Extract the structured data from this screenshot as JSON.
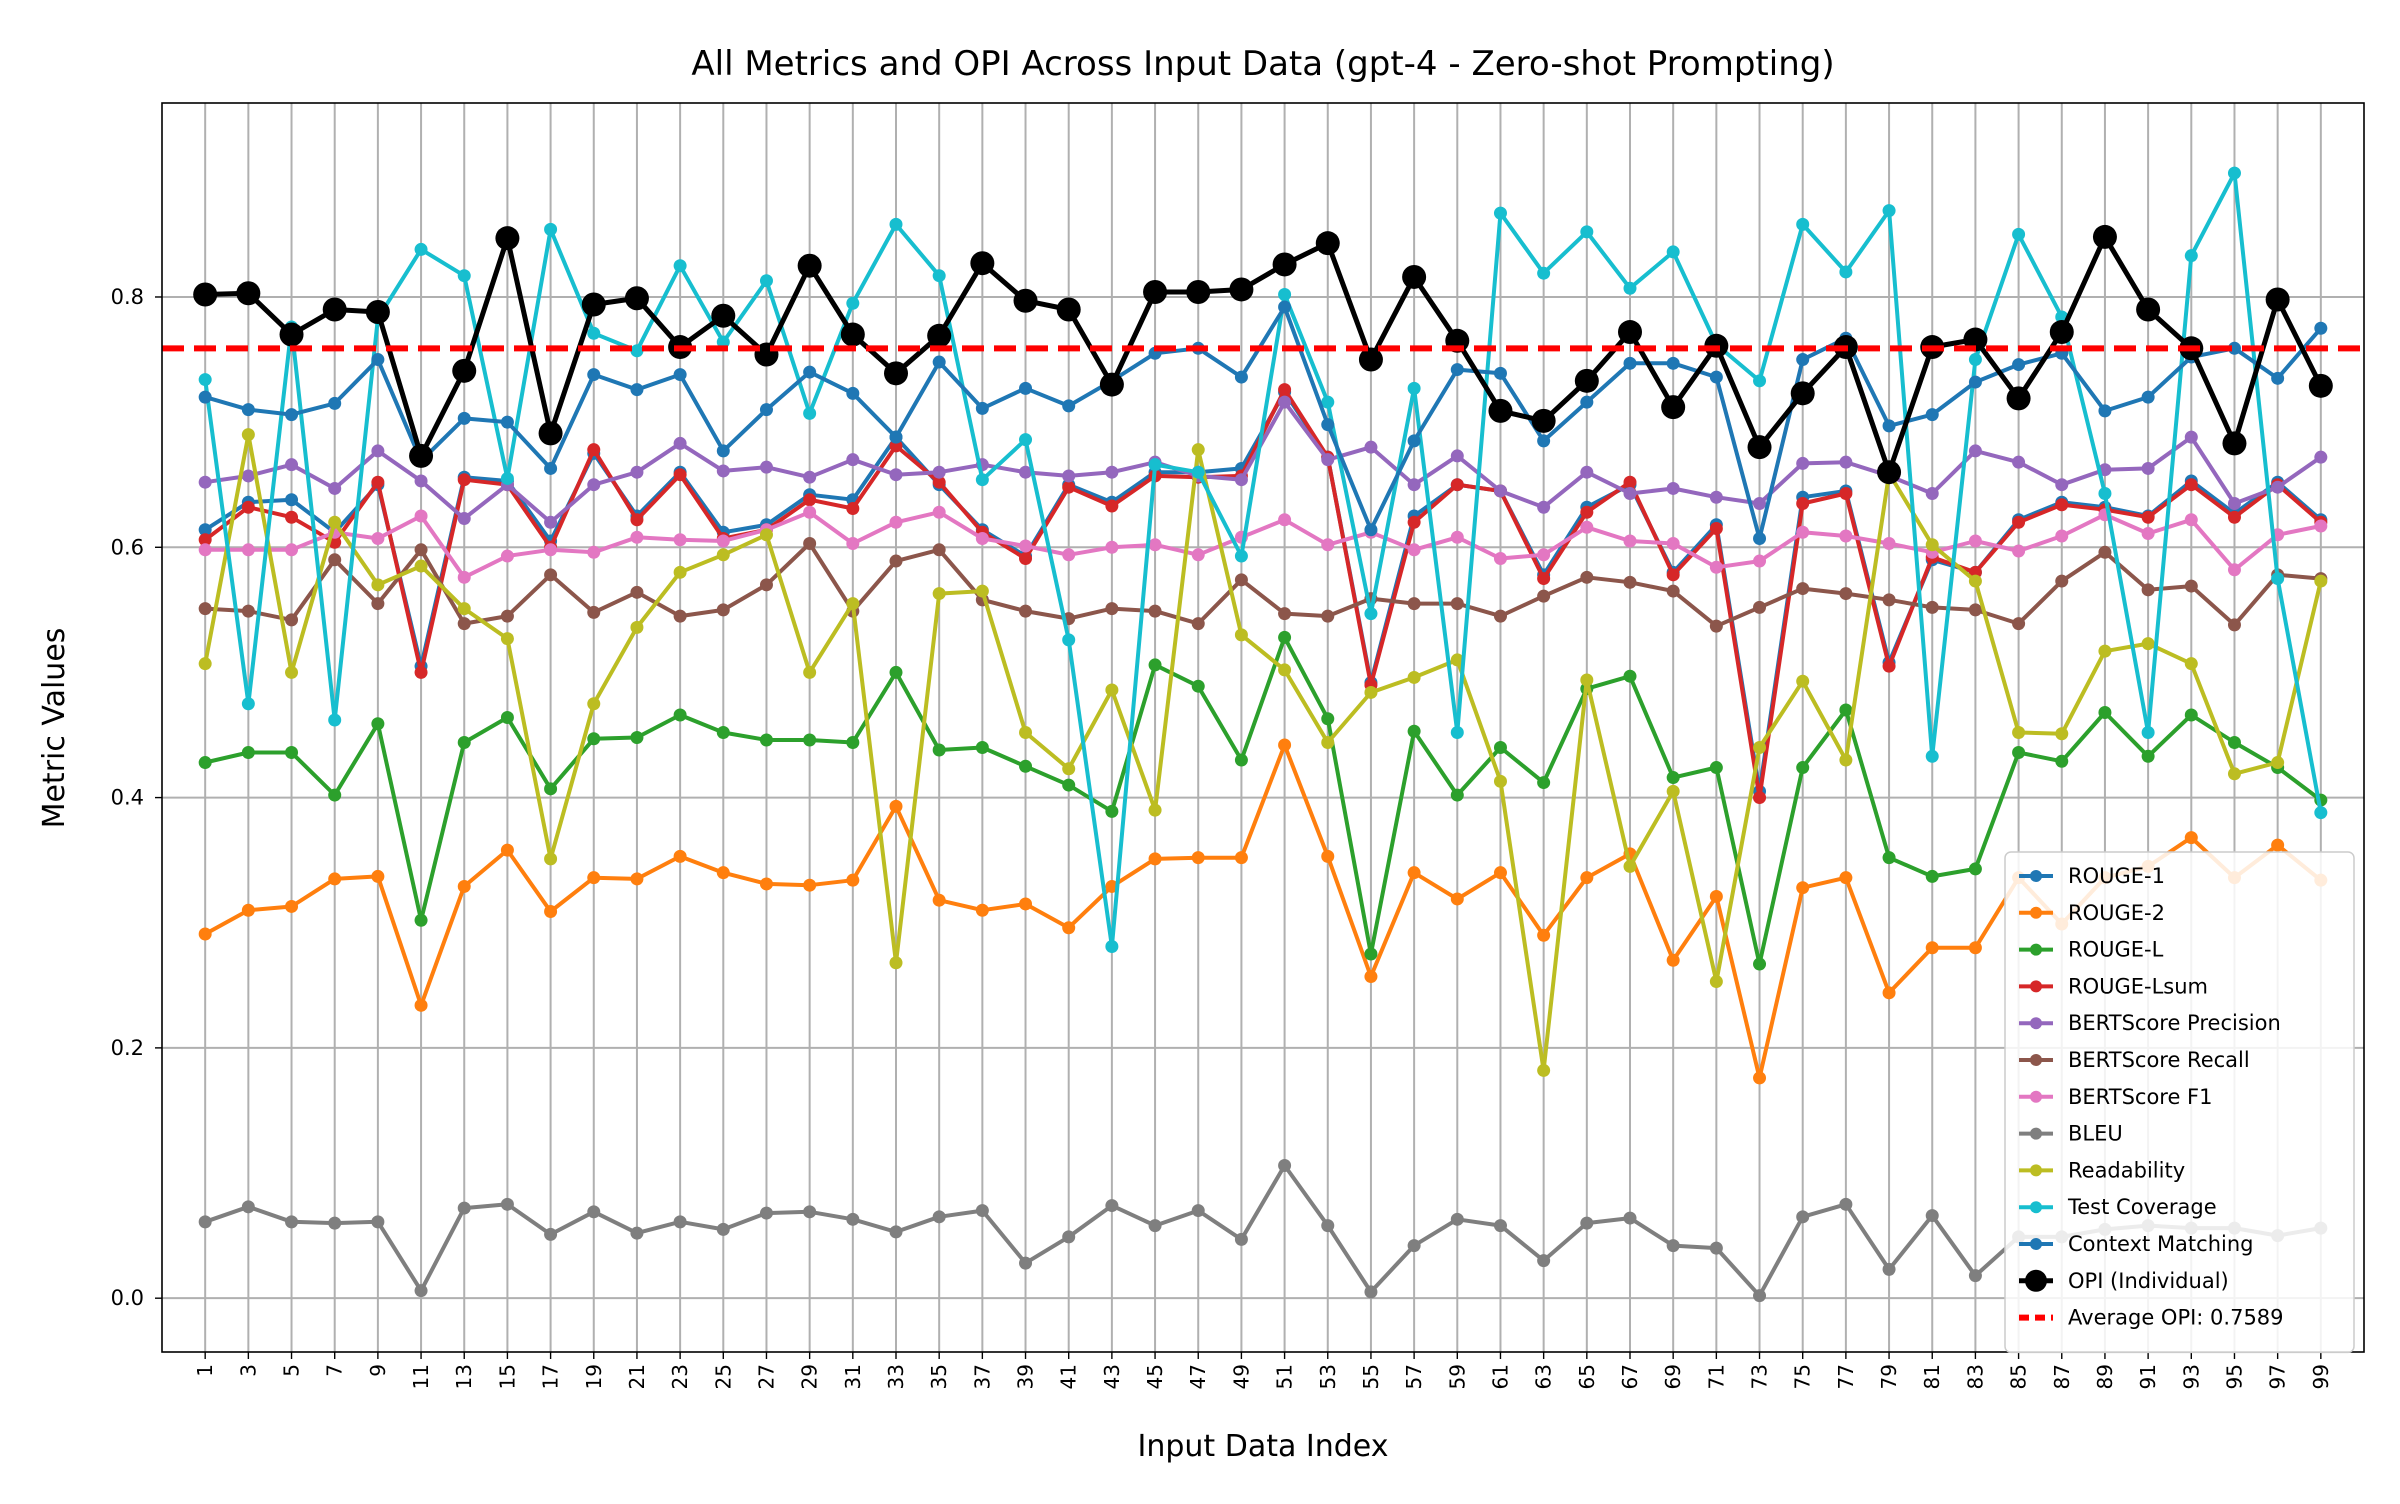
{
  "chart_data": {
    "type": "line",
    "title": "All Metrics and OPI Across Input Data (gpt-4 - Zero-shot Prompting)",
    "xlabel": "Input Data Index",
    "ylabel": "Metric Values",
    "x": [
      1,
      3,
      5,
      7,
      9,
      11,
      13,
      15,
      17,
      19,
      21,
      23,
      25,
      27,
      29,
      31,
      33,
      35,
      37,
      39,
      41,
      43,
      45,
      47,
      49,
      51,
      53,
      55,
      57,
      59,
      61,
      63,
      65,
      67,
      69,
      71,
      73,
      75,
      77,
      79,
      81,
      83,
      85,
      87,
      89,
      91,
      93,
      95,
      97,
      99
    ],
    "xlim": [
      -1.0,
      101.0
    ],
    "ylim": [
      -0.043,
      0.955
    ],
    "yticks": [
      0.0,
      0.2,
      0.4,
      0.6,
      0.8
    ],
    "ytick_labels": [
      "0.0",
      "0.2",
      "0.4",
      "0.6",
      "0.8"
    ],
    "grid": true,
    "legend_position": "lower-right",
    "series": [
      {
        "name": "ROUGE-1",
        "color": "#1f77b4",
        "values": [
          0.614,
          0.636,
          0.638,
          0.612,
          0.65,
          0.505,
          0.656,
          0.653,
          0.605,
          0.675,
          0.625,
          0.66,
          0.612,
          0.618,
          0.642,
          0.638,
          0.688,
          0.65,
          0.614,
          0.593,
          0.65,
          0.636,
          0.66,
          0.66,
          0.663,
          0.724,
          0.672,
          0.492,
          0.625,
          0.65,
          0.645,
          0.578,
          0.632,
          0.65,
          0.58,
          0.618,
          0.405,
          0.64,
          0.645,
          0.508,
          0.59,
          0.58,
          0.622,
          0.636,
          0.632,
          0.625,
          0.653,
          0.627,
          0.652,
          0.622
        ]
      },
      {
        "name": "ROUGE-2",
        "color": "#ff7f0e",
        "values": [
          0.291,
          0.31,
          0.313,
          0.335,
          0.337,
          0.234,
          0.329,
          0.358,
          0.309,
          0.336,
          0.335,
          0.353,
          0.34,
          0.331,
          0.33,
          0.334,
          0.393,
          0.318,
          0.31,
          0.315,
          0.296,
          0.329,
          0.351,
          0.352,
          0.352,
          0.442,
          0.353,
          0.257,
          0.34,
          0.319,
          0.34,
          0.29,
          0.336,
          0.355,
          0.27,
          0.321,
          0.176,
          0.328,
          0.336,
          0.244,
          0.28,
          0.28,
          0.336,
          0.299,
          0.336,
          0.345,
          0.368,
          0.336,
          0.362,
          0.334
        ]
      },
      {
        "name": "ROUGE-L",
        "color": "#2ca02c",
        "values": [
          0.428,
          0.436,
          0.436,
          0.402,
          0.459,
          0.302,
          0.444,
          0.464,
          0.407,
          0.447,
          0.448,
          0.466,
          0.452,
          0.446,
          0.446,
          0.444,
          0.5,
          0.438,
          0.44,
          0.425,
          0.41,
          0.389,
          0.506,
          0.489,
          0.43,
          0.528,
          0.463,
          0.275,
          0.453,
          0.402,
          0.44,
          0.412,
          0.487,
          0.497,
          0.416,
          0.424,
          0.267,
          0.424,
          0.47,
          0.352,
          0.337,
          0.343,
          0.436,
          0.429,
          0.468,
          0.433,
          0.466,
          0.444,
          0.424,
          0.398
        ]
      },
      {
        "name": "ROUGE-Lsum",
        "color": "#d62728",
        "values": [
          0.606,
          0.632,
          0.624,
          0.604,
          0.652,
          0.5,
          0.654,
          0.65,
          0.6,
          0.678,
          0.622,
          0.658,
          0.607,
          0.614,
          0.638,
          0.631,
          0.681,
          0.652,
          0.612,
          0.591,
          0.648,
          0.633,
          0.657,
          0.656,
          0.657,
          0.726,
          0.672,
          0.49,
          0.62,
          0.65,
          0.645,
          0.575,
          0.628,
          0.652,
          0.578,
          0.615,
          0.4,
          0.635,
          0.643,
          0.505,
          0.592,
          0.58,
          0.62,
          0.634,
          0.63,
          0.624,
          0.65,
          0.624,
          0.65,
          0.62
        ]
      },
      {
        "name": "BERTScore Precision",
        "color": "#9467bd",
        "values": [
          0.652,
          0.657,
          0.666,
          0.647,
          0.677,
          0.653,
          0.623,
          0.65,
          0.62,
          0.65,
          0.66,
          0.683,
          0.661,
          0.664,
          0.656,
          0.67,
          0.658,
          0.66,
          0.666,
          0.66,
          0.657,
          0.66,
          0.668,
          0.657,
          0.654,
          0.716,
          0.67,
          0.68,
          0.65,
          0.673,
          0.645,
          0.632,
          0.66,
          0.643,
          0.647,
          0.64,
          0.635,
          0.667,
          0.668,
          0.657,
          0.643,
          0.677,
          0.668,
          0.65,
          0.662,
          0.663,
          0.688,
          0.635,
          0.648,
          0.672
        ]
      },
      {
        "name": "BERTScore Recall",
        "color": "#8c564b",
        "values": [
          0.551,
          0.549,
          0.542,
          0.59,
          0.555,
          0.598,
          0.539,
          0.545,
          0.578,
          0.548,
          0.564,
          0.545,
          0.55,
          0.57,
          0.603,
          0.549,
          0.589,
          0.598,
          0.558,
          0.549,
          0.543,
          0.551,
          0.549,
          0.539,
          0.574,
          0.547,
          0.545,
          0.559,
          0.555,
          0.555,
          0.545,
          0.561,
          0.576,
          0.572,
          0.565,
          0.537,
          0.552,
          0.567,
          0.563,
          0.558,
          0.552,
          0.55,
          0.539,
          0.573,
          0.596,
          0.566,
          0.569,
          0.538,
          0.578,
          0.575
        ]
      },
      {
        "name": "BERTScore F1",
        "color": "#e377c2",
        "values": [
          0.598,
          0.598,
          0.598,
          0.612,
          0.607,
          0.625,
          0.576,
          0.593,
          0.598,
          0.596,
          0.608,
          0.606,
          0.605,
          0.614,
          0.628,
          0.603,
          0.62,
          0.628,
          0.607,
          0.601,
          0.594,
          0.6,
          0.602,
          0.594,
          0.608,
          0.622,
          0.602,
          0.612,
          0.598,
          0.608,
          0.591,
          0.594,
          0.616,
          0.605,
          0.603,
          0.584,
          0.589,
          0.612,
          0.609,
          0.603,
          0.596,
          0.605,
          0.597,
          0.609,
          0.626,
          0.611,
          0.622,
          0.582,
          0.61,
          0.617
        ]
      },
      {
        "name": "BLEU",
        "color": "#7f7f7f",
        "values": [
          0.061,
          0.073,
          0.061,
          0.06,
          0.061,
          0.006,
          0.072,
          0.075,
          0.051,
          0.069,
          0.052,
          0.061,
          0.055,
          0.068,
          0.069,
          0.063,
          0.053,
          0.065,
          0.07,
          0.028,
          0.049,
          0.074,
          0.058,
          0.07,
          0.047,
          0.106,
          0.058,
          0.005,
          0.042,
          0.063,
          0.058,
          0.03,
          0.06,
          0.064,
          0.042,
          0.04,
          0.002,
          0.065,
          0.075,
          0.023,
          0.066,
          0.018,
          0.049,
          0.049,
          0.055,
          0.058,
          0.056,
          0.056,
          0.05,
          0.056
        ]
      },
      {
        "name": "Readability",
        "color": "#bcbd22",
        "values": [
          0.507,
          0.69,
          0.5,
          0.62,
          0.57,
          0.585,
          0.551,
          0.527,
          0.351,
          0.475,
          0.536,
          0.58,
          0.594,
          0.61,
          0.5,
          0.555,
          0.268,
          0.563,
          0.565,
          0.452,
          0.423,
          0.486,
          0.39,
          0.678,
          0.53,
          0.502,
          0.444,
          0.484,
          0.496,
          0.51,
          0.413,
          0.182,
          0.494,
          0.345,
          0.405,
          0.253,
          0.44,
          0.493,
          0.43,
          0.659,
          0.602,
          0.573,
          0.452,
          0.451,
          0.517,
          0.523,
          0.507,
          0.419,
          0.428,
          0.573
        ]
      },
      {
        "name": "Test Coverage",
        "color": "#17becf",
        "values": [
          0.734,
          0.475,
          0.776,
          0.462,
          0.783,
          0.838,
          0.817,
          0.655,
          0.854,
          0.771,
          0.757,
          0.825,
          0.764,
          0.813,
          0.707,
          0.795,
          0.858,
          0.817,
          0.654,
          0.686,
          0.526,
          0.281,
          0.666,
          0.66,
          0.593,
          0.802,
          0.716,
          0.547,
          0.727,
          0.452,
          0.867,
          0.819,
          0.852,
          0.807,
          0.836,
          0.762,
          0.733,
          0.858,
          0.82,
          0.869,
          0.433,
          0.75,
          0.85,
          0.784,
          0.643,
          0.452,
          0.833,
          0.899,
          0.575,
          0.388
        ]
      },
      {
        "name": "Context Matching",
        "color": "#1f77b4",
        "values": [
          0.72,
          0.71,
          0.706,
          0.715,
          0.75,
          0.669,
          0.703,
          0.7,
          0.663,
          0.738,
          0.726,
          0.738,
          0.677,
          0.71,
          0.74,
          0.723,
          0.688,
          0.748,
          0.711,
          0.727,
          0.713,
          0.733,
          0.755,
          0.759,
          0.736,
          0.792,
          0.698,
          0.614,
          0.685,
          0.742,
          0.739,
          0.685,
          0.716,
          0.747,
          0.747,
          0.736,
          0.607,
          0.75,
          0.767,
          0.697,
          0.706,
          0.732,
          0.746,
          0.755,
          0.709,
          0.72,
          0.752,
          0.759,
          0.735,
          0.775
        ]
      },
      {
        "name": "OPI (Individual)",
        "color": "#000000",
        "values": [
          0.802,
          0.803,
          0.77,
          0.79,
          0.788,
          0.673,
          0.741,
          0.847,
          0.691,
          0.794,
          0.799,
          0.76,
          0.785,
          0.754,
          0.825,
          0.77,
          0.739,
          0.769,
          0.827,
          0.797,
          0.79,
          0.73,
          0.804,
          0.804,
          0.806,
          0.826,
          0.843,
          0.75,
          0.816,
          0.765,
          0.709,
          0.701,
          0.733,
          0.772,
          0.712,
          0.761,
          0.68,
          0.723,
          0.76,
          0.66,
          0.76,
          0.766,
          0.719,
          0.772,
          0.848,
          0.79,
          0.759,
          0.683,
          0.798,
          0.729
        ]
      }
    ],
    "reference_line": {
      "name": "Average OPI: 0.7589",
      "value": 0.7589,
      "color": "#ff0000",
      "style": "dashed"
    }
  }
}
